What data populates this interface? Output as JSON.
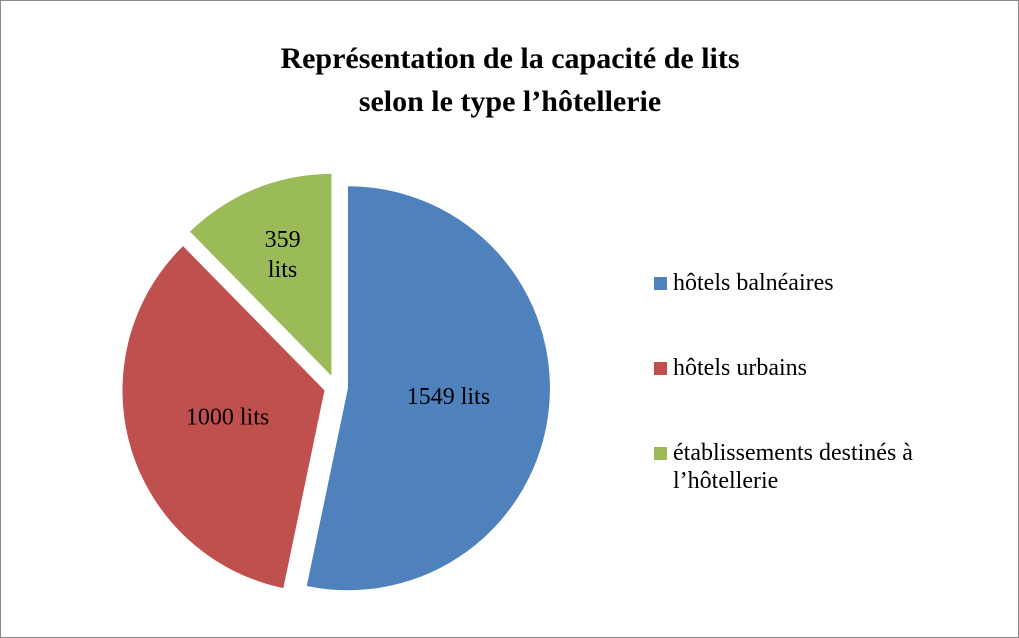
{
  "chart_data": {
    "type": "pie",
    "title": [
      "Représentation de la capacité de lits",
      "selon le type l’hôtellerie"
    ],
    "categories": [
      "hôtels balnéaires",
      "hôtels urbains",
      "établissements destinés à l’hôtellerie"
    ],
    "values": [
      1549,
      1000,
      359
    ],
    "value_labels": [
      "1549 lits",
      "1000 lits",
      "359 lits"
    ],
    "colors": [
      "#4f81bd",
      "#c0504d",
      "#9bbb59"
    ],
    "legend": "right"
  }
}
